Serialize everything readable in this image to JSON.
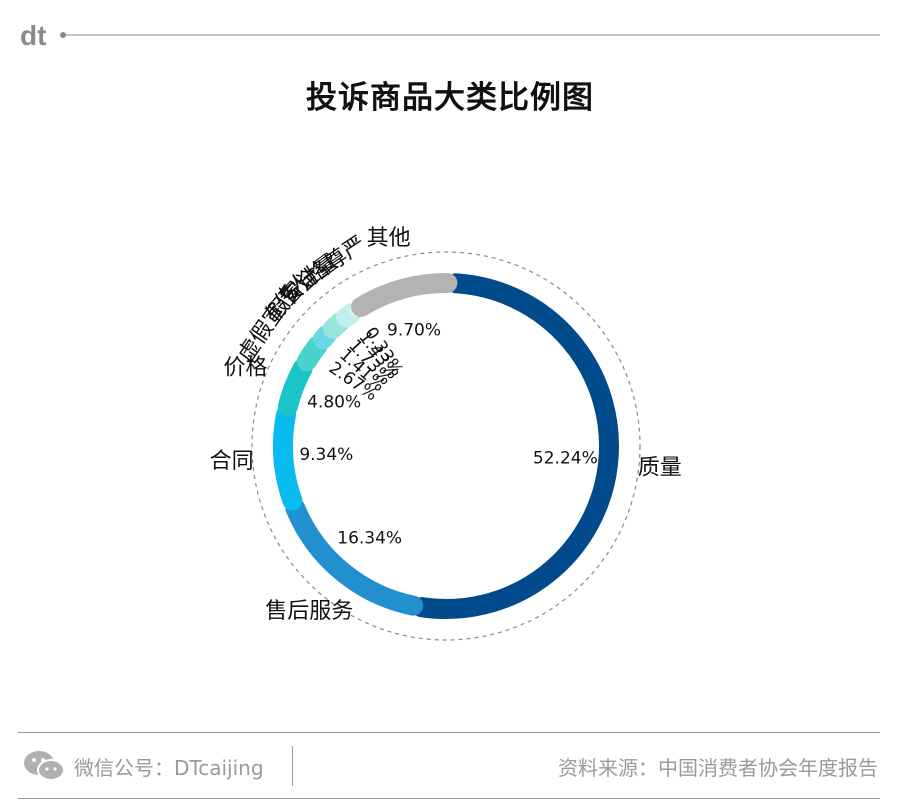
{
  "brand": {
    "logo_text": "dt",
    "logo_color": "#8a8a8a"
  },
  "title": "投诉商品大类比例图",
  "chart_data": {
    "type": "pie",
    "style": "ring",
    "categories": [
      "质量",
      "售后服务",
      "合同",
      "价格",
      "虚假宣传",
      "假冒",
      "安全",
      "计量",
      "人格尊严",
      "其他"
    ],
    "values": [
      52.24,
      16.34,
      9.34,
      4.8,
      2.67,
      1.41,
      1.73,
      1.43,
      0.33,
      9.7
    ],
    "value_labels": [
      "52.24%",
      "16.34%",
      "9.34%",
      "4.80%",
      "2.67%",
      "1.41%",
      "1.73%",
      "1.43%",
      "0.33%",
      "9.70%"
    ],
    "colors": [
      "#014a8c",
      "#2290cf",
      "#09bbee",
      "#1ac4c7",
      "#48d3cb",
      "#68d8e6",
      "#98e5da",
      "#bff0eb",
      "#d8f5f2",
      "#b3b3b3"
    ]
  },
  "footer": {
    "wechat_label": "微信公号：DTcaijing",
    "source_label": "资料来源：中国消费者协会年度报告"
  }
}
